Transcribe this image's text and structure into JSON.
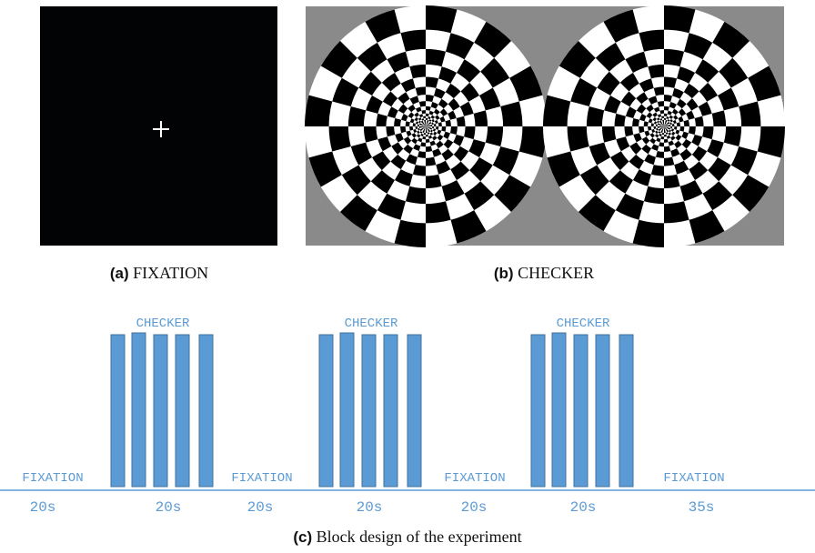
{
  "figure": {
    "panel_a": {
      "tag": "(a)",
      "caption": "FIXATION"
    },
    "panel_b": {
      "tag": "(b)",
      "caption": "CHECKER"
    },
    "panel_c": {
      "tag": "(c)",
      "caption": "Block design of the experiment"
    },
    "timeline": {
      "checker_labels": [
        "CHECKER",
        "CHECKER",
        "CHECKER"
      ],
      "fixation_labels": [
        "FIXATION",
        "FIXATION",
        "FIXATION",
        "FIXATION"
      ],
      "durations": [
        "20s",
        "20s",
        "20s",
        "20s",
        "20s",
        "20s",
        "35s"
      ]
    }
  }
}
